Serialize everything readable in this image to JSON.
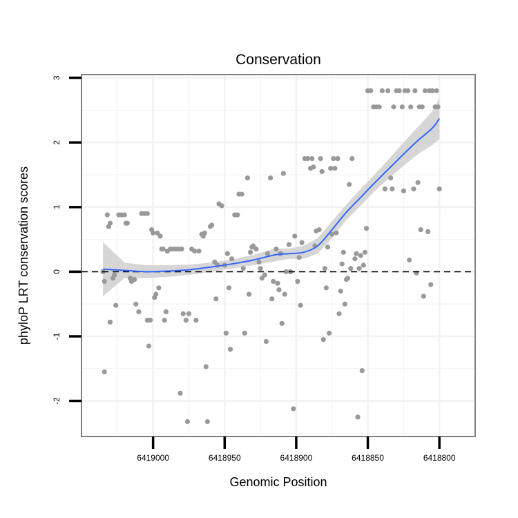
{
  "chart_data": {
    "type": "scatter",
    "title": "Conservation",
    "xlabel": "Genomic Position",
    "ylabel": "phyloP LRT conservation scores",
    "x_reversed": true,
    "xlim": [
      6419050,
      6418775
    ],
    "ylim": [
      -2.55,
      3.05
    ],
    "x_ticks": [
      6419000,
      6418950,
      6418900,
      6418850,
      6418800
    ],
    "x_tick_labels": [
      "6419000",
      "6418950",
      "6418900",
      "6418850",
      "6418800"
    ],
    "y_ticks": [
      -2,
      -1,
      0,
      1,
      2,
      3
    ],
    "y_tick_labels": [
      "-2",
      "-1",
      "0",
      "1",
      "2",
      "3"
    ],
    "reference_line": {
      "y": 0,
      "style": "dashed"
    },
    "colors": {
      "points": "#999999",
      "smooth": "#3366ff",
      "band": "#cccccc",
      "frame": "#7f7f7f",
      "grid": "#f2f2f2"
    },
    "points": [
      {
        "x": 6419035,
        "y": 0.0
      },
      {
        "x": 6419034,
        "y": -0.15
      },
      {
        "x": 6419034,
        "y": -1.55
      },
      {
        "x": 6419032,
        "y": 0.88
      },
      {
        "x": 6419031,
        "y": 0.7
      },
      {
        "x": 6419030,
        "y": 0.75
      },
      {
        "x": 6419030,
        "y": -0.78
      },
      {
        "x": 6419028,
        "y": -0.1
      },
      {
        "x": 6419027,
        "y": -0.05
      },
      {
        "x": 6419026,
        "y": -0.52
      },
      {
        "x": 6419024,
        "y": 0.88
      },
      {
        "x": 6419022,
        "y": 0.88
      },
      {
        "x": 6419020,
        "y": 0.88
      },
      {
        "x": 6419019,
        "y": 0.75
      },
      {
        "x": 6419018,
        "y": 0.75
      },
      {
        "x": 6419016,
        "y": -0.1
      },
      {
        "x": 6419015,
        "y": -0.15
      },
      {
        "x": 6419013,
        "y": -0.12
      },
      {
        "x": 6419012,
        "y": -0.5
      },
      {
        "x": 6419010,
        "y": -0.62
      },
      {
        "x": 6419008,
        "y": 0.9
      },
      {
        "x": 6419006,
        "y": 0.9
      },
      {
        "x": 6419004,
        "y": 0.9
      },
      {
        "x": 6419004,
        "y": -0.75
      },
      {
        "x": 6419003,
        "y": -1.15
      },
      {
        "x": 6419002,
        "y": -0.75
      },
      {
        "x": 6419001,
        "y": 0.65
      },
      {
        "x": 6419000,
        "y": 0.6
      },
      {
        "x": 6418999,
        "y": -0.4
      },
      {
        "x": 6418998,
        "y": -0.35
      },
      {
        "x": 6418997,
        "y": 0.6
      },
      {
        "x": 6418996,
        "y": -0.25
      },
      {
        "x": 6418995,
        "y": 0.55
      },
      {
        "x": 6418994,
        "y": 0.35
      },
      {
        "x": 6418993,
        "y": 0.35
      },
      {
        "x": 6418992,
        "y": -0.75
      },
      {
        "x": 6418991,
        "y": -0.62
      },
      {
        "x": 6418990,
        "y": 0.32
      },
      {
        "x": 6418988,
        "y": 0.35
      },
      {
        "x": 6418986,
        "y": 0.35
      },
      {
        "x": 6418984,
        "y": 0.35
      },
      {
        "x": 6418982,
        "y": 0.35
      },
      {
        "x": 6418981,
        "y": -1.88
      },
      {
        "x": 6418980,
        "y": 0.35
      },
      {
        "x": 6418979,
        "y": -0.65
      },
      {
        "x": 6418977,
        "y": -0.75
      },
      {
        "x": 6418976,
        "y": -2.32
      },
      {
        "x": 6418975,
        "y": -0.65
      },
      {
        "x": 6418973,
        "y": 0.35
      },
      {
        "x": 6418971,
        "y": 0.32
      },
      {
        "x": 6418970,
        "y": -0.75
      },
      {
        "x": 6418968,
        "y": 0.32
      },
      {
        "x": 6418966,
        "y": 0.58
      },
      {
        "x": 6418965,
        "y": 0.55
      },
      {
        "x": 6418964,
        "y": 0.6
      },
      {
        "x": 6418963,
        "y": -1.47
      },
      {
        "x": 6418962,
        "y": -2.32
      },
      {
        "x": 6418960,
        "y": 0.7
      },
      {
        "x": 6418959,
        "y": 0.72
      },
      {
        "x": 6418957,
        "y": 0.15
      },
      {
        "x": 6418956,
        "y": -0.42
      },
      {
        "x": 6418955,
        "y": 0.1
      },
      {
        "x": 6418954,
        "y": 1.05
      },
      {
        "x": 6418952,
        "y": 1.02
      },
      {
        "x": 6418950,
        "y": 0.1
      },
      {
        "x": 6418949,
        "y": -0.95
      },
      {
        "x": 6418948,
        "y": 0.28
      },
      {
        "x": 6418947,
        "y": -0.25
      },
      {
        "x": 6418946,
        "y": -1.2
      },
      {
        "x": 6418945,
        "y": 0.2
      },
      {
        "x": 6418943,
        "y": 0.88
      },
      {
        "x": 6418941,
        "y": 0.88
      },
      {
        "x": 6418940,
        "y": 1.2
      },
      {
        "x": 6418938,
        "y": 1.2
      },
      {
        "x": 6418937,
        "y": 0.05
      },
      {
        "x": 6418936,
        "y": -0.95
      },
      {
        "x": 6418934,
        "y": 1.45
      },
      {
        "x": 6418933,
        "y": -0.35
      },
      {
        "x": 6418932,
        "y": 0.3
      },
      {
        "x": 6418931,
        "y": 0.38
      },
      {
        "x": 6418930,
        "y": 0.4
      },
      {
        "x": 6418928,
        "y": 0.35
      },
      {
        "x": 6418926,
        "y": 0.15
      },
      {
        "x": 6418925,
        "y": 0.05
      },
      {
        "x": 6418924,
        "y": -0.1
      },
      {
        "x": 6418922,
        "y": -0.05
      },
      {
        "x": 6418921,
        "y": -1.08
      },
      {
        "x": 6418920,
        "y": 0.28
      },
      {
        "x": 6418918,
        "y": 1.45
      },
      {
        "x": 6418917,
        "y": -0.42
      },
      {
        "x": 6418916,
        "y": -0.15
      },
      {
        "x": 6418914,
        "y": 0.35
      },
      {
        "x": 6418913,
        "y": -0.18
      },
      {
        "x": 6418912,
        "y": -0.28
      },
      {
        "x": 6418911,
        "y": 0.28
      },
      {
        "x": 6418910,
        "y": -0.8
      },
      {
        "x": 6418909,
        "y": 1.52
      },
      {
        "x": 6418908,
        "y": -0.35
      },
      {
        "x": 6418907,
        "y": 0.0
      },
      {
        "x": 6418905,
        "y": 0.42
      },
      {
        "x": 6418904,
        "y": 0.0
      },
      {
        "x": 6418902,
        "y": -2.12
      },
      {
        "x": 6418901,
        "y": 0.55
      },
      {
        "x": 6418899,
        "y": -0.15
      },
      {
        "x": 6418898,
        "y": 0.22
      },
      {
        "x": 6418897,
        "y": -0.52
      },
      {
        "x": 6418896,
        "y": 0.45
      },
      {
        "x": 6418894,
        "y": 1.75
      },
      {
        "x": 6418892,
        "y": 1.75
      },
      {
        "x": 6418890,
        "y": 1.6
      },
      {
        "x": 6418889,
        "y": 1.75
      },
      {
        "x": 6418888,
        "y": 1.62
      },
      {
        "x": 6418887,
        "y": 0.4
      },
      {
        "x": 6418886,
        "y": 0.63
      },
      {
        "x": 6418884,
        "y": 0.65
      },
      {
        "x": 6418883,
        "y": 1.75
      },
      {
        "x": 6418882,
        "y": 1.55
      },
      {
        "x": 6418881,
        "y": -1.05
      },
      {
        "x": 6418880,
        "y": 0.05
      },
      {
        "x": 6418879,
        "y": -0.25
      },
      {
        "x": 6418878,
        "y": 0.38
      },
      {
        "x": 6418877,
        "y": -0.95
      },
      {
        "x": 6418876,
        "y": 1.6
      },
      {
        "x": 6418875,
        "y": 0.58
      },
      {
        "x": 6418874,
        "y": 1.75
      },
      {
        "x": 6418873,
        "y": 1.6
      },
      {
        "x": 6418872,
        "y": 0.6
      },
      {
        "x": 6418871,
        "y": 1.75
      },
      {
        "x": 6418870,
        "y": -0.65
      },
      {
        "x": 6418869,
        "y": -0.3
      },
      {
        "x": 6418868,
        "y": 0.12
      },
      {
        "x": 6418867,
        "y": 0.3
      },
      {
        "x": 6418866,
        "y": -0.5
      },
      {
        "x": 6418865,
        "y": -0.12
      },
      {
        "x": 6418864,
        "y": -0.1
      },
      {
        "x": 6418863,
        "y": 1.35
      },
      {
        "x": 6418862,
        "y": 0.05
      },
      {
        "x": 6418861,
        "y": 1.75
      },
      {
        "x": 6418859,
        "y": 0.2
      },
      {
        "x": 6418858,
        "y": 0.28
      },
      {
        "x": 6418857,
        "y": -2.25
      },
      {
        "x": 6418856,
        "y": 0.05
      },
      {
        "x": 6418855,
        "y": 0.25
      },
      {
        "x": 6418854,
        "y": -1.53
      },
      {
        "x": 6418853,
        "y": 0.1
      },
      {
        "x": 6418852,
        "y": 0.3
      },
      {
        "x": 6418851,
        "y": 0.67
      },
      {
        "x": 6418850,
        "y": 2.8
      },
      {
        "x": 6418848,
        "y": 2.8
      },
      {
        "x": 6418846,
        "y": 2.55
      },
      {
        "x": 6418844,
        "y": 2.55
      },
      {
        "x": 6418842,
        "y": 2.55
      },
      {
        "x": 6418840,
        "y": 2.8
      },
      {
        "x": 6418838,
        "y": 1.28
      },
      {
        "x": 6418836,
        "y": 2.8
      },
      {
        "x": 6418834,
        "y": 1.45
      },
      {
        "x": 6418833,
        "y": 1.28
      },
      {
        "x": 6418832,
        "y": 2.55
      },
      {
        "x": 6418830,
        "y": 2.8
      },
      {
        "x": 6418828,
        "y": 2.8
      },
      {
        "x": 6418826,
        "y": 2.55
      },
      {
        "x": 6418825,
        "y": 1.25
      },
      {
        "x": 6418824,
        "y": 2.8
      },
      {
        "x": 6418822,
        "y": 2.8
      },
      {
        "x": 6418821,
        "y": 0.18
      },
      {
        "x": 6418820,
        "y": 2.55
      },
      {
        "x": 6418818,
        "y": 1.28
      },
      {
        "x": 6418817,
        "y": 2.8
      },
      {
        "x": 6418816,
        "y": -0.02
      },
      {
        "x": 6418815,
        "y": 1.38
      },
      {
        "x": 6418814,
        "y": 2.55
      },
      {
        "x": 6418813,
        "y": 0.65
      },
      {
        "x": 6418812,
        "y": 2.55
      },
      {
        "x": 6418811,
        "y": -0.38
      },
      {
        "x": 6418810,
        "y": 2.8
      },
      {
        "x": 6418808,
        "y": 0.62
      },
      {
        "x": 6418807,
        "y": 2.8
      },
      {
        "x": 6418806,
        "y": -0.2
      },
      {
        "x": 6418805,
        "y": 2.8
      },
      {
        "x": 6418803,
        "y": 2.55
      },
      {
        "x": 6418802,
        "y": 2.8
      },
      {
        "x": 6418801,
        "y": 2.55
      },
      {
        "x": 6418800,
        "y": 1.28
      }
    ],
    "smooth": {
      "x": [
        6419035,
        6419020,
        6419005,
        6418990,
        6418975,
        6418960,
        6418945,
        6418930,
        6418915,
        6418905,
        6418895,
        6418885,
        6418875,
        6418865,
        6418855,
        6418845,
        6418835,
        6418825,
        6418815,
        6418805,
        6418800
      ],
      "y": [
        0.04,
        0.02,
        0.0,
        0.01,
        0.03,
        0.07,
        0.12,
        0.18,
        0.26,
        0.28,
        0.3,
        0.4,
        0.65,
        0.92,
        1.15,
        1.38,
        1.6,
        1.82,
        2.03,
        2.22,
        2.37
      ],
      "lower": [
        -0.38,
        -0.1,
        -0.1,
        -0.08,
        -0.05,
        0.0,
        0.05,
        0.1,
        0.16,
        0.2,
        0.2,
        0.28,
        0.52,
        0.8,
        1.02,
        1.25,
        1.45,
        1.64,
        1.82,
        1.96,
        2.05
      ],
      "upper": [
        0.46,
        0.14,
        0.1,
        0.1,
        0.11,
        0.14,
        0.19,
        0.26,
        0.36,
        0.36,
        0.4,
        0.52,
        0.78,
        1.04,
        1.28,
        1.51,
        1.75,
        2.0,
        2.24,
        2.48,
        2.69
      ]
    }
  }
}
